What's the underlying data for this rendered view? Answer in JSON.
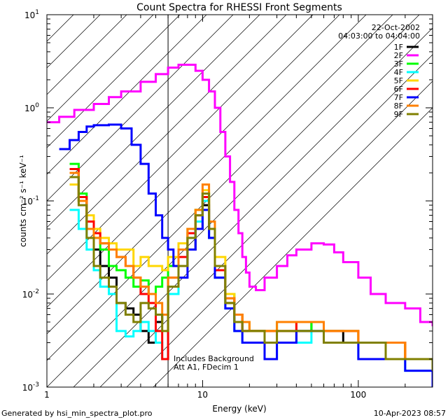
{
  "chart_data": {
    "type": "line",
    "title": "Count Spectra for RHESSI Front Segments",
    "xlabel": "Energy (keV)",
    "ylabel": "counts cm⁻² s⁻¹ keV⁻¹",
    "xscale": "log",
    "yscale": "log",
    "xlim": [
      1,
      300
    ],
    "ylim": [
      0.001,
      10
    ],
    "x_tick_labels": [
      {
        "value": 1,
        "label": "1"
      },
      {
        "value": 10,
        "label": "10"
      },
      {
        "value": 100,
        "label": "100"
      }
    ],
    "y_tick_labels": [
      {
        "value": 0.001,
        "base": "10",
        "exp": "-3"
      },
      {
        "value": 0.01,
        "base": "10",
        "exp": "-2"
      },
      {
        "value": 0.1,
        "base": "10",
        "exp": "-1"
      },
      {
        "value": 1,
        "base": "10",
        "exp": "0"
      },
      {
        "value": 10,
        "base": "10",
        "exp": "1"
      }
    ],
    "hatched_region": {
      "x_from": 1,
      "x_to": 6
    },
    "annotations": {
      "date": "22-Oct-2002",
      "time_range": "04:03:00 to 04:04:00",
      "background_note": "Includes Background",
      "attenuator_note": "Att A1, FDecim 1"
    },
    "legend_position": "top-right",
    "series": [
      {
        "name": "1F",
        "color": "#000000",
        "x": [
          1.4,
          1.6,
          1.8,
          2.0,
          2.2,
          2.5,
          2.8,
          3.2,
          3.6,
          4.0,
          4.5,
          5.0,
          5.5,
          6.0,
          7.0,
          8.0,
          9.0,
          10.0,
          11.0,
          12.0,
          14.0,
          16.0,
          18.0,
          20.0,
          25.0,
          30.0,
          40.0,
          50.0,
          60.0,
          80.0,
          100.0,
          150.0,
          200.0,
          300.0
        ],
        "y": [
          0.2,
          0.1,
          0.05,
          0.03,
          0.02,
          0.015,
          0.008,
          0.007,
          0.006,
          0.004,
          0.003,
          0.005,
          0.006,
          0.012,
          0.02,
          0.03,
          0.05,
          0.09,
          0.04,
          0.015,
          0.008,
          0.005,
          0.004,
          0.004,
          0.003,
          0.003,
          0.004,
          0.005,
          0.004,
          0.003,
          0.003,
          0.002,
          0.002,
          0.0015
        ]
      },
      {
        "name": "2F",
        "color": "#ff00ff",
        "x": [
          1.0,
          1.2,
          1.5,
          2.0,
          2.5,
          3.0,
          4.0,
          5.0,
          6.0,
          7.0,
          8.0,
          9.0,
          10.0,
          11.0,
          12.0,
          13.0,
          14.0,
          15.0,
          16.0,
          17.0,
          18.0,
          19.0,
          20.0,
          22.0,
          25.0,
          30.0,
          35.0,
          40.0,
          50.0,
          60.0,
          70.0,
          80.0,
          100.0,
          120.0,
          150.0,
          200.0,
          250.0,
          300.0
        ],
        "y": [
          0.7,
          0.8,
          0.95,
          1.1,
          1.3,
          1.5,
          1.9,
          2.3,
          2.7,
          2.9,
          2.9,
          2.5,
          2.0,
          1.5,
          1.0,
          0.55,
          0.3,
          0.16,
          0.08,
          0.045,
          0.025,
          0.017,
          0.012,
          0.011,
          0.015,
          0.02,
          0.026,
          0.03,
          0.035,
          0.034,
          0.028,
          0.022,
          0.015,
          0.01,
          0.008,
          0.007,
          0.005,
          0.0045
        ]
      },
      {
        "name": "3F",
        "color": "#00ff00",
        "x": [
          1.4,
          1.6,
          1.8,
          2.0,
          2.2,
          2.5,
          2.8,
          3.2,
          3.6,
          4.0,
          4.5,
          5.0,
          5.5,
          6.0,
          7.0,
          8.0,
          9.0,
          10.0,
          11.0,
          12.0,
          14.0,
          16.0,
          18.0,
          20.0,
          25.0,
          30.0,
          40.0,
          50.0,
          60.0,
          80.0,
          100.0,
          150.0,
          200.0,
          300.0
        ],
        "y": [
          0.25,
          0.12,
          0.06,
          0.04,
          0.03,
          0.02,
          0.018,
          0.015,
          0.012,
          0.014,
          0.01,
          0.012,
          0.015,
          0.02,
          0.03,
          0.05,
          0.08,
          0.12,
          0.05,
          0.02,
          0.01,
          0.006,
          0.005,
          0.004,
          0.004,
          0.005,
          0.004,
          0.005,
          0.004,
          0.004,
          0.003,
          0.003,
          0.002,
          0.0018
        ]
      },
      {
        "name": "4F",
        "color": "#00ffff",
        "x": [
          1.4,
          1.6,
          1.8,
          2.0,
          2.2,
          2.5,
          2.8,
          3.2,
          3.6,
          4.0,
          4.5,
          5.0,
          5.5,
          6.0,
          7.0,
          8.0,
          9.0,
          10.0,
          11.0,
          12.0,
          14.0,
          16.0,
          18.0,
          20.0,
          25.0,
          30.0,
          40.0,
          50.0,
          60.0,
          80.0,
          100.0,
          150.0,
          200.0,
          300.0
        ],
        "y": [
          0.08,
          0.05,
          0.03,
          0.018,
          0.012,
          0.01,
          0.004,
          0.0035,
          0.004,
          0.005,
          0.004,
          0.003,
          0.002,
          0.01,
          0.02,
          0.04,
          0.06,
          0.1,
          0.04,
          0.015,
          0.007,
          0.004,
          0.003,
          0.003,
          0.002,
          0.003,
          0.003,
          0.004,
          0.003,
          0.003,
          0.002,
          0.002,
          0.0015,
          0.001
        ]
      },
      {
        "name": "5F",
        "color": "#ffd700",
        "x": [
          1.4,
          1.6,
          1.8,
          2.0,
          2.2,
          2.5,
          2.8,
          3.2,
          3.6,
          4.0,
          4.5,
          5.0,
          5.5,
          6.0,
          7.0,
          8.0,
          9.0,
          10.0,
          11.0,
          12.0,
          14.0,
          16.0,
          18.0,
          20.0,
          25.0,
          30.0,
          40.0,
          50.0,
          60.0,
          80.0,
          100.0,
          150.0,
          200.0,
          300.0
        ],
        "y": [
          0.15,
          0.1,
          0.07,
          0.05,
          0.04,
          0.035,
          0.03,
          0.03,
          0.02,
          0.025,
          0.02,
          0.02,
          0.018,
          0.025,
          0.035,
          0.05,
          0.08,
          0.13,
          0.06,
          0.025,
          0.01,
          0.006,
          0.005,
          0.004,
          0.004,
          0.004,
          0.005,
          0.005,
          0.004,
          0.004,
          0.003,
          0.003,
          0.002,
          0.0015
        ]
      },
      {
        "name": "6F",
        "color": "#ff0000",
        "x": [
          1.4,
          1.6,
          1.8,
          2.0,
          2.2,
          2.5,
          2.8,
          3.2,
          3.6,
          4.0,
          4.5,
          5.0,
          5.5,
          6.0,
          7.0,
          8.0,
          9.0,
          10.0,
          11.0,
          12.0,
          14.0,
          16.0,
          18.0,
          20.0,
          25.0,
          30.0,
          40.0,
          50.0,
          60.0,
          80.0,
          100.0,
          150.0,
          200.0,
          300.0
        ],
        "y": [
          0.22,
          0.11,
          0.06,
          0.045,
          0.035,
          0.03,
          0.025,
          0.02,
          0.015,
          0.01,
          0.008,
          0.004,
          0.002,
          0.015,
          0.025,
          0.045,
          0.07,
          0.11,
          0.05,
          0.018,
          0.009,
          0.006,
          0.004,
          0.004,
          0.004,
          0.004,
          0.005,
          0.005,
          0.004,
          0.004,
          0.003,
          0.003,
          0.002,
          0.0015
        ]
      },
      {
        "name": "7F",
        "color": "#0000ff",
        "x": [
          1.2,
          1.4,
          1.6,
          1.8,
          2.0,
          2.5,
          3.0,
          3.5,
          4.0,
          4.5,
          5.0,
          5.5,
          6.0,
          6.5,
          7.0,
          8.0,
          9.0,
          10.0,
          11.0,
          12.0,
          14.0,
          16.0,
          18.0,
          20.0,
          25.0,
          30.0,
          40.0,
          50.0,
          60.0,
          80.0,
          100.0,
          150.0,
          200.0,
          300.0
        ],
        "y": [
          0.36,
          0.45,
          0.55,
          0.63,
          0.65,
          0.66,
          0.6,
          0.4,
          0.25,
          0.12,
          0.07,
          0.04,
          0.03,
          0.02,
          0.015,
          0.03,
          0.05,
          0.08,
          0.04,
          0.015,
          0.007,
          0.004,
          0.003,
          0.003,
          0.002,
          0.003,
          0.004,
          0.004,
          0.003,
          0.003,
          0.002,
          0.002,
          0.0015,
          0.001
        ]
      },
      {
        "name": "8F",
        "color": "#ff8000",
        "x": [
          1.4,
          1.6,
          1.8,
          2.0,
          2.2,
          2.5,
          2.8,
          3.2,
          3.6,
          4.0,
          4.5,
          5.0,
          5.5,
          6.0,
          7.0,
          8.0,
          9.0,
          10.0,
          11.0,
          12.0,
          14.0,
          16.0,
          18.0,
          20.0,
          25.0,
          30.0,
          40.0,
          50.0,
          60.0,
          80.0,
          100.0,
          150.0,
          200.0,
          300.0
        ],
        "y": [
          0.2,
          0.1,
          0.05,
          0.04,
          0.035,
          0.03,
          0.025,
          0.02,
          0.015,
          0.012,
          0.01,
          0.008,
          0.006,
          0.015,
          0.03,
          0.05,
          0.08,
          0.15,
          0.06,
          0.02,
          0.009,
          0.006,
          0.005,
          0.004,
          0.004,
          0.005,
          0.005,
          0.005,
          0.004,
          0.004,
          0.003,
          0.003,
          0.002,
          0.0015
        ]
      },
      {
        "name": "9F",
        "color": "#808000",
        "x": [
          1.4,
          1.6,
          1.8,
          2.0,
          2.2,
          2.5,
          2.8,
          3.2,
          3.6,
          4.0,
          4.5,
          5.0,
          5.5,
          6.0,
          7.0,
          8.0,
          9.0,
          10.0,
          11.0,
          12.0,
          14.0,
          16.0,
          18.0,
          20.0,
          25.0,
          30.0,
          40.0,
          50.0,
          60.0,
          80.0,
          100.0,
          150.0,
          200.0,
          300.0
        ],
        "y": [
          0.18,
          0.09,
          0.04,
          0.02,
          0.015,
          0.012,
          0.008,
          0.006,
          0.005,
          0.008,
          0.007,
          0.006,
          0.004,
          0.012,
          0.02,
          0.04,
          0.07,
          0.12,
          0.05,
          0.02,
          0.008,
          0.005,
          0.004,
          0.004,
          0.003,
          0.004,
          0.004,
          0.004,
          0.003,
          0.003,
          0.003,
          0.002,
          0.002,
          0.0015
        ]
      }
    ]
  },
  "footer": {
    "left": "Generated by hsi_min_spectra_plot.pro",
    "right": "10-Apr-2023 08:57"
  }
}
